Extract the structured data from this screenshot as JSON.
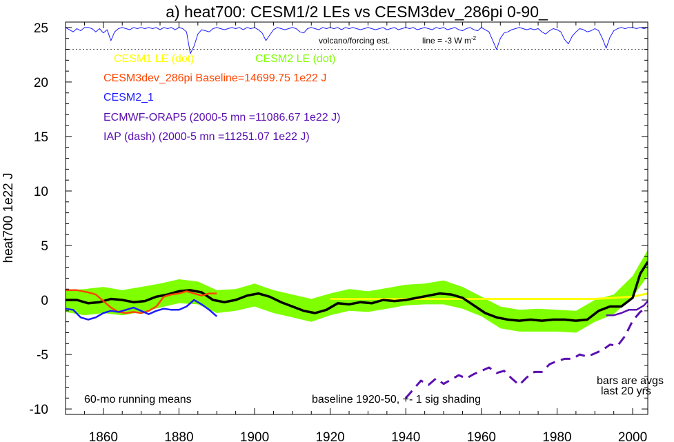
{
  "chart_data": {
    "type": "line",
    "title": "a) heat700: CESM1/2 LEs vs CESM3dev_286pi 0-90_",
    "ylabel": "heat700 1e22 J",
    "xlim": [
      1850,
      2004
    ],
    "ylim": [
      -10.5,
      25.5
    ],
    "x_ticks": [
      1860,
      1880,
      1900,
      1920,
      1940,
      1960,
      1980,
      2000
    ],
    "y_ticks": [
      -10,
      -5,
      0,
      5,
      10,
      15,
      20,
      25
    ],
    "dotted_ref_y": 23,
    "volcano_note": "volcano/forcing est.",
    "line_note": "line = -3 W m",
    "line_note_sup": "-2",
    "legend": [
      {
        "name": "CESM1 LE (dot)",
        "color": "#ffff00"
      },
      {
        "name": "CESM2 LE (dot)",
        "color": "#7fff00"
      },
      {
        "name": "CESM3dev_286pi Baseline=14699.75 1e22 J",
        "color": "#ff4500"
      },
      {
        "name": "CESM2_1",
        "color": "#1c1cff"
      },
      {
        "name": "ECMWF-ORAP5 (2000-5 mn =11086.67 1e22 J)",
        "color": "#5a0fb0"
      },
      {
        "name": "IAP (dash) (2000-5 mn =11251.07 1e22 J)",
        "color": "#5a0fb0"
      }
    ],
    "annotations": {
      "running_means": "60-mo running means",
      "baseline": "baseline 1920-50, +- 1 sig shading",
      "bars_line1": "bars are avgs",
      "bars_line2": "last 20 yrs"
    },
    "series": [
      {
        "name": "CESM2 LE (dot)",
        "role": "shading",
        "color": "#7fff00",
        "x": [
          1850,
          1855,
          1860,
          1865,
          1870,
          1875,
          1880,
          1885,
          1890,
          1895,
          1900,
          1905,
          1910,
          1915,
          1920,
          1925,
          1930,
          1935,
          1940,
          1945,
          1950,
          1955,
          1960,
          1965,
          1970,
          1975,
          1980,
          1985,
          1990,
          1995,
          2000,
          2004
        ],
        "lower": [
          -1.1,
          -1.4,
          -1.2,
          -1.4,
          -1.1,
          -0.7,
          -0.3,
          -0.4,
          -1.2,
          -1.0,
          -0.6,
          -1.2,
          -1.6,
          -2.0,
          -1.4,
          -1.0,
          -1.1,
          -0.8,
          -0.5,
          -0.4,
          -0.4,
          -0.8,
          -1.5,
          -2.6,
          -2.9,
          -2.9,
          -2.9,
          -3.0,
          -2.0,
          -1.3,
          0.3,
          2.2
        ],
        "upper": [
          0.9,
          1.0,
          1.2,
          0.9,
          1.2,
          1.5,
          1.9,
          1.7,
          0.9,
          1.0,
          1.5,
          0.9,
          0.5,
          0.1,
          0.6,
          1.0,
          0.8,
          1.1,
          1.4,
          1.5,
          1.8,
          1.2,
          0.3,
          -0.6,
          -0.9,
          -0.8,
          -0.9,
          -1.0,
          0.0,
          0.5,
          2.2,
          4.6
        ]
      },
      {
        "name": "CESM1 LE (dot)",
        "role": "line",
        "color": "#ffff00",
        "x": [
          1920,
          1930,
          1940,
          1950,
          1960,
          1970,
          1980,
          1990,
          1995,
          2000,
          2004
        ],
        "y": [
          0.1,
          0.1,
          0.1,
          0.1,
          0.1,
          0.1,
          0.1,
          0.1,
          0.2,
          0.3,
          0.6
        ]
      },
      {
        "name": "CESM2 LE mean",
        "role": "line",
        "color": "#000000",
        "x": [
          1850,
          1853,
          1856,
          1859,
          1862,
          1865,
          1868,
          1871,
          1874,
          1877,
          1880,
          1883,
          1886,
          1889,
          1892,
          1895,
          1898,
          1901,
          1904,
          1907,
          1910,
          1913,
          1916,
          1919,
          1922,
          1925,
          1928,
          1931,
          1934,
          1937,
          1940,
          1943,
          1946,
          1949,
          1952,
          1955,
          1958,
          1961,
          1964,
          1967,
          1970,
          1973,
          1976,
          1979,
          1982,
          1985,
          1988,
          1991,
          1994,
          1997,
          2000,
          2002,
          2004
        ],
        "y": [
          0.0,
          0.0,
          -0.3,
          -0.2,
          0.1,
          0.0,
          -0.2,
          -0.1,
          0.3,
          0.5,
          0.8,
          0.9,
          0.7,
          0.0,
          -0.2,
          0.0,
          0.4,
          0.6,
          0.3,
          -0.2,
          -0.6,
          -1.0,
          -1.2,
          -0.9,
          -0.3,
          -0.4,
          -0.2,
          -0.3,
          0.0,
          -0.1,
          0.0,
          0.2,
          0.4,
          0.6,
          0.5,
          0.2,
          -0.5,
          -1.2,
          -1.6,
          -1.8,
          -1.9,
          -1.8,
          -1.9,
          -1.8,
          -1.8,
          -1.9,
          -1.8,
          -1.0,
          -0.6,
          -0.6,
          0.2,
          2.4,
          3.5
        ]
      },
      {
        "name": "CESM3dev_286pi",
        "role": "line",
        "color": "#ff4500",
        "x": [
          1850,
          1853,
          1856,
          1858,
          1860,
          1862,
          1864,
          1866,
          1868,
          1870,
          1872,
          1874,
          1876,
          1878,
          1880,
          1882,
          1884,
          1886,
          1888,
          1890
        ],
        "y": [
          0.9,
          0.9,
          0.7,
          0.5,
          -0.1,
          -0.7,
          -1.1,
          -1.2,
          -1.1,
          -1.2,
          -1.0,
          -0.6,
          0.3,
          0.5,
          0.6,
          0.8,
          0.6,
          0.4,
          0.6,
          0.6
        ]
      },
      {
        "name": "CESM2_1",
        "role": "line",
        "color": "#1c1cff",
        "x": [
          1850,
          1852,
          1854,
          1856,
          1858,
          1860,
          1862,
          1864,
          1866,
          1868,
          1870,
          1872,
          1874,
          1876,
          1878,
          1880,
          1882,
          1884,
          1886,
          1888,
          1890
        ],
        "y": [
          -0.8,
          -0.9,
          -1.6,
          -1.8,
          -1.6,
          -1.2,
          -1.0,
          -1.1,
          -0.9,
          -0.7,
          -1.0,
          -1.3,
          -1.0,
          -0.8,
          -0.9,
          -0.9,
          -0.6,
          0.0,
          -0.4,
          -0.9,
          -1.5
        ]
      },
      {
        "name": "ECMWF-ORAP5",
        "role": "line",
        "color": "#5a0fb0",
        "x": [
          1993,
          1995,
          1997,
          1999,
          2001,
          2003,
          2004
        ],
        "y": [
          -1.4,
          -1.4,
          -1.2,
          -0.9,
          -0.9,
          -0.5,
          -0.1
        ]
      },
      {
        "name": "IAP (dash)",
        "role": "dashed",
        "color": "#5a0fb0",
        "x": [
          1940,
          1942,
          1944,
          1946,
          1948,
          1950,
          1952,
          1954,
          1956,
          1958,
          1960,
          1962,
          1964,
          1966,
          1968,
          1970,
          1972,
          1974,
          1976,
          1978,
          1980,
          1982,
          1984,
          1986,
          1988,
          1990,
          1992,
          1994,
          1996,
          1998,
          2000,
          2002,
          2004
        ],
        "y": [
          -9.0,
          -8.2,
          -7.4,
          -7.8,
          -7.2,
          -7.7,
          -7.3,
          -6.9,
          -7.2,
          -6.8,
          -6.5,
          -6.2,
          -6.7,
          -6.5,
          -7.2,
          -7.8,
          -7.1,
          -6.6,
          -6.6,
          -5.9,
          -5.6,
          -5.4,
          -5.4,
          -5.0,
          -5.2,
          -4.9,
          -4.6,
          -4.1,
          -4.2,
          -3.3,
          -1.9,
          -1.1,
          -0.6
        ]
      },
      {
        "name": "volcano/forcing est.",
        "role": "forcing",
        "color": "#1c1cff",
        "x": [
          1850,
          1851,
          1852,
          1853,
          1854,
          1855,
          1856,
          1857,
          1858,
          1859,
          1860,
          1861,
          1862,
          1863,
          1864,
          1865,
          1866,
          1867,
          1868,
          1869,
          1870,
          1871,
          1872,
          1873,
          1874,
          1875,
          1876,
          1877,
          1878,
          1879,
          1880,
          1881,
          1882,
          1883,
          1884,
          1885,
          1886,
          1887,
          1888,
          1889,
          1890,
          1891,
          1892,
          1893,
          1894,
          1895,
          1896,
          1897,
          1898,
          1899,
          1900,
          1901,
          1902,
          1903,
          1904,
          1905,
          1906,
          1907,
          1908,
          1909,
          1910,
          1911,
          1912,
          1913,
          1914,
          1915,
          1916,
          1917,
          1918,
          1919,
          1920,
          1921,
          1922,
          1923,
          1924,
          1925,
          1926,
          1927,
          1928,
          1929,
          1930,
          1931,
          1932,
          1933,
          1934,
          1935,
          1936,
          1937,
          1938,
          1939,
          1940,
          1941,
          1942,
          1943,
          1944,
          1945,
          1946,
          1947,
          1948,
          1949,
          1950,
          1951,
          1952,
          1953,
          1954,
          1955,
          1956,
          1957,
          1958,
          1959,
          1960,
          1961,
          1962,
          1963,
          1964,
          1965,
          1966,
          1967,
          1968,
          1969,
          1970,
          1971,
          1972,
          1973,
          1974,
          1975,
          1976,
          1977,
          1978,
          1979,
          1980,
          1981,
          1982,
          1983,
          1984,
          1985,
          1986,
          1987,
          1988,
          1989,
          1990,
          1991,
          1992,
          1993,
          1994,
          1995,
          1996,
          1997,
          1998,
          1999,
          2000,
          2001,
          2002,
          2003,
          2004
        ],
        "y": [
          25,
          24.8,
          24.6,
          24.9,
          24.7,
          25,
          25,
          24.9,
          24.6,
          24.9,
          24.5,
          24.8,
          23.8,
          24.6,
          24.9,
          25,
          24.9,
          24.8,
          25,
          24.9,
          25,
          24.9,
          25,
          24.9,
          25,
          24.8,
          25,
          24.9,
          25,
          24.8,
          25,
          24.9,
          24.6,
          22.6,
          23.3,
          24.4,
          24.8,
          24.7,
          24.6,
          24.9,
          25,
          24.9,
          24.8,
          24.9,
          25,
          24.9,
          25,
          24.8,
          25,
          24.9,
          25,
          24.8,
          24.5,
          23.8,
          24.3,
          24.8,
          25,
          24.9,
          24.8,
          24.9,
          25,
          24.9,
          24.6,
          24.5,
          24.9,
          25,
          24.9,
          24.8,
          25,
          24.9,
          25,
          24.9,
          25,
          24.8,
          25,
          24.9,
          25,
          24.9,
          24.8,
          24.9,
          25,
          24.9,
          24.8,
          24.9,
          25,
          24.8,
          24.9,
          25,
          24.8,
          24.9,
          25,
          24.9,
          25,
          24.8,
          24.9,
          25,
          24.9,
          24.8,
          25,
          24.9,
          25,
          24.8,
          24.9,
          25,
          24.8,
          24.7,
          24.9,
          25,
          24.8,
          24.7,
          25,
          24.8,
          24.6,
          23.8,
          23.0,
          24.0,
          24.5,
          24.6,
          24.8,
          24.9,
          25,
          24.9,
          24.8,
          24.9,
          24.8,
          24.9,
          24.6,
          24.4,
          24.7,
          24.9,
          24.8,
          24.6,
          23.9,
          23.5,
          24.2,
          24.6,
          24.9,
          24.8,
          24.6,
          24.7,
          24.9,
          24.7,
          24.0,
          23.1,
          24.1,
          24.7,
          24.9,
          25,
          24.9,
          25,
          25,
          24.9,
          25,
          24.9,
          25
        ]
      }
    ]
  }
}
